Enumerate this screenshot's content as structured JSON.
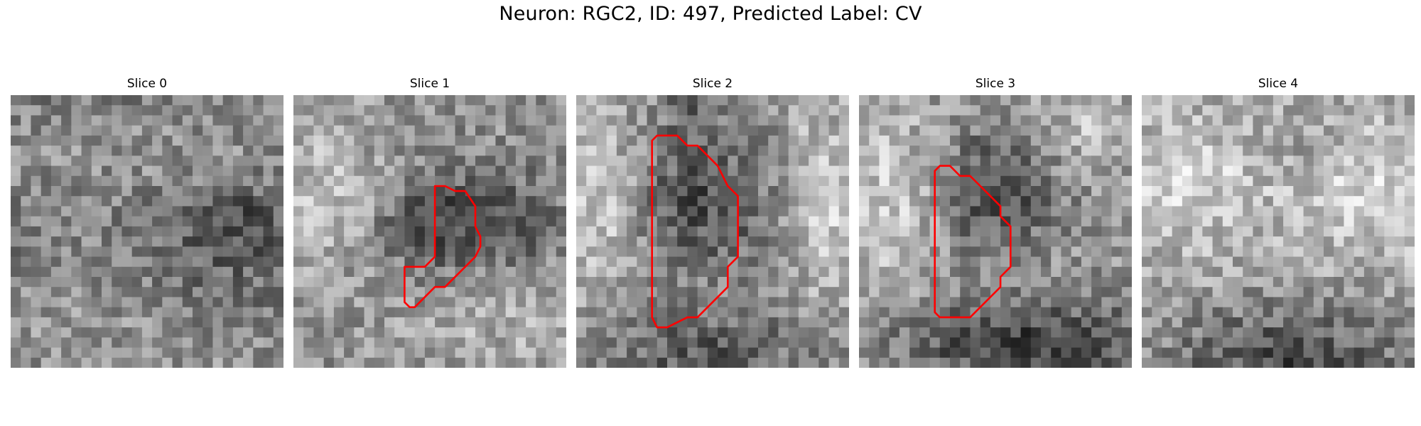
{
  "figure": {
    "title": "Neuron: RGC2, ID: 497, Predicted Label: CV",
    "contour_color": "#ff0000"
  },
  "slices": [
    {
      "label": "Slice 0"
    },
    {
      "label": "Slice 1"
    },
    {
      "label": "Slice 2"
    },
    {
      "label": "Slice 3"
    },
    {
      "label": "Slice 4"
    }
  ]
}
